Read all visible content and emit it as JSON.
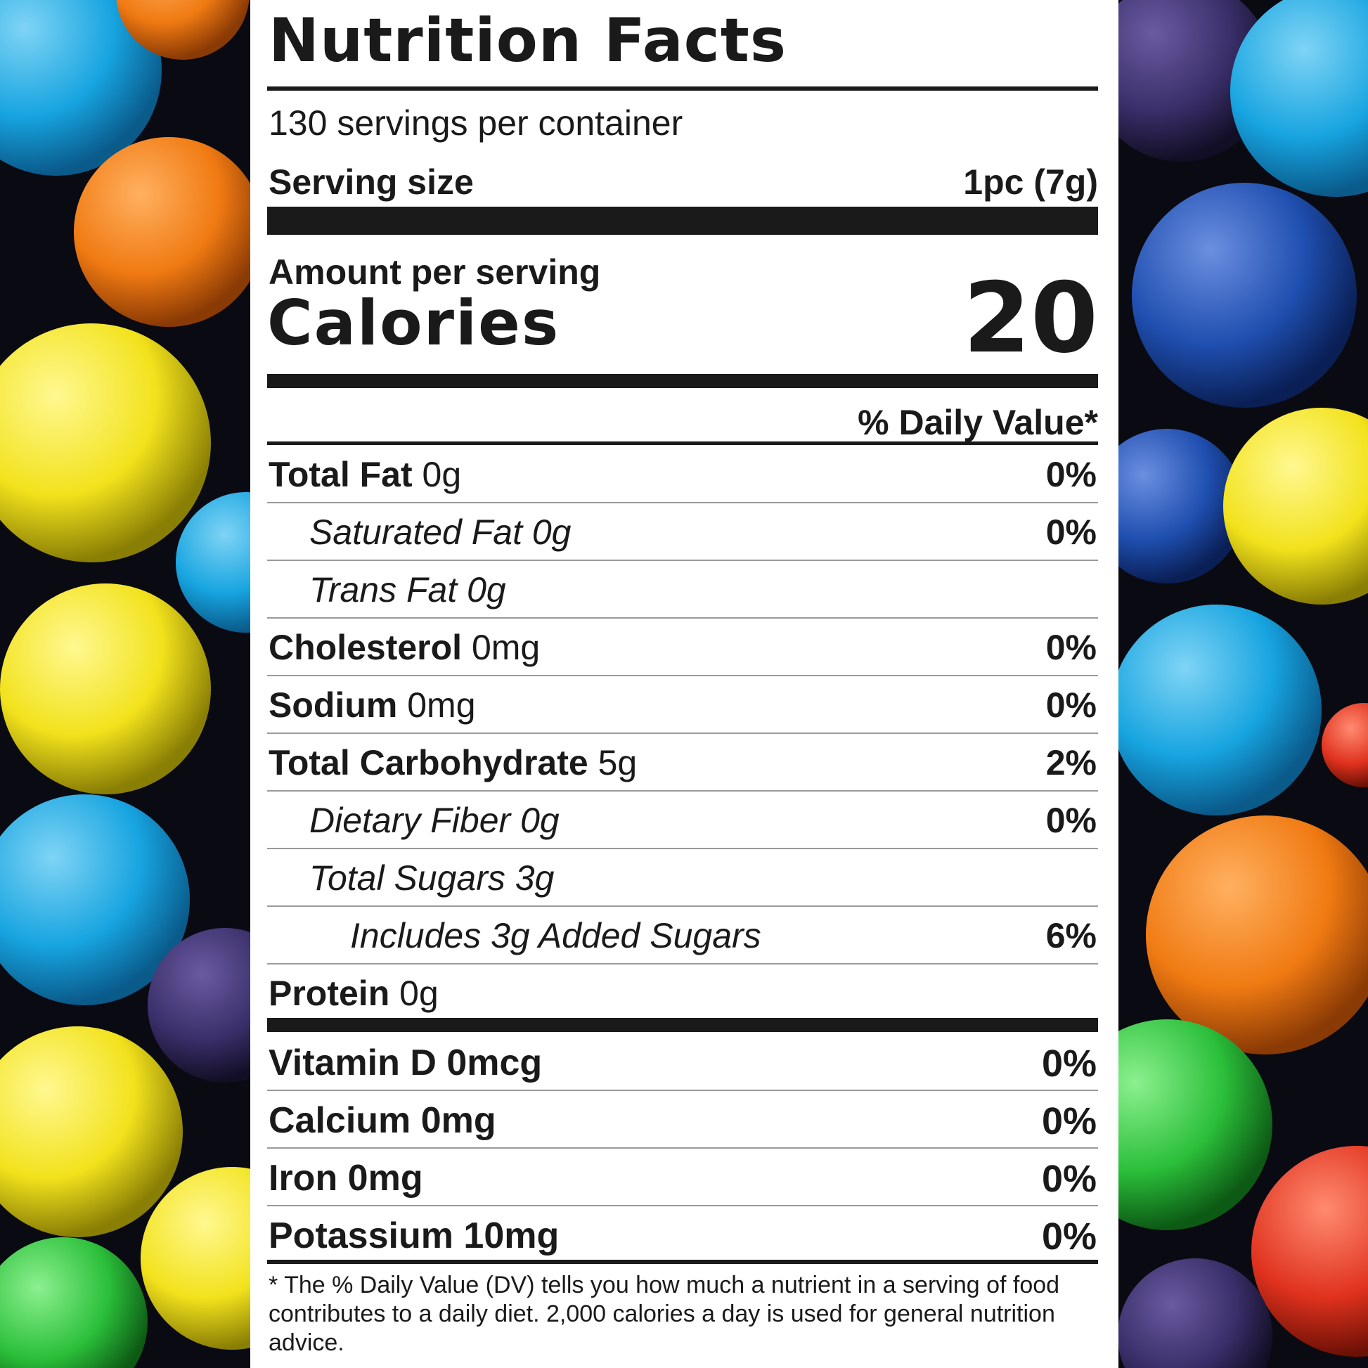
{
  "label": {
    "title": "Nutrition Facts",
    "servings_per_container": "130 servings per container",
    "serving_size_label": "Serving size",
    "serving_size_value": "1pc (7g)",
    "amount_per_serving": "Amount per serving",
    "calories_label": "Calories",
    "calories_value": "20",
    "daily_value_header": "% Daily Value*",
    "nutrients": [
      {
        "name": "Total Fat",
        "amount": "0g",
        "dv": "0%"
      },
      {
        "name": "Saturated Fat 0g",
        "amount": "",
        "dv": "0%"
      },
      {
        "name": "Trans Fat 0g",
        "amount": "",
        "dv": ""
      },
      {
        "name": "Cholesterol",
        "amount": "0mg",
        "dv": "0%"
      },
      {
        "name": "Sodium",
        "amount": "0mg",
        "dv": "0%"
      },
      {
        "name": "Total Carbohydrate",
        "amount": "5g",
        "dv": "2%"
      },
      {
        "name": "Dietary Fiber 0g",
        "amount": "",
        "dv": "0%"
      },
      {
        "name": "Total Sugars 3g",
        "amount": "",
        "dv": ""
      },
      {
        "name": "Includes 3g Added Sugars",
        "amount": "",
        "dv": "6%"
      },
      {
        "name": "Protein",
        "amount": "0g",
        "dv": ""
      }
    ],
    "vitamins": [
      {
        "name": "Vitamin D 0mcg",
        "dv": "0%"
      },
      {
        "name": "Calcium 0mg",
        "dv": "0%"
      },
      {
        "name": "Iron 0mg",
        "dv": "0%"
      },
      {
        "name": "Potassium 10mg",
        "dv": "0%"
      }
    ],
    "footnote": "* The % Daily Value (DV) tells you how much a nutrient in a serving of food contributes to a daily diet. 2,000 calories a day is used for general nutrition advice."
  },
  "background": {
    "description_colors": [
      "#1aa3e0",
      "#f07a12",
      "#f2e21c",
      "#1f4fb0",
      "#3a2f6a",
      "#2bbf3a",
      "#e0321e"
    ]
  }
}
